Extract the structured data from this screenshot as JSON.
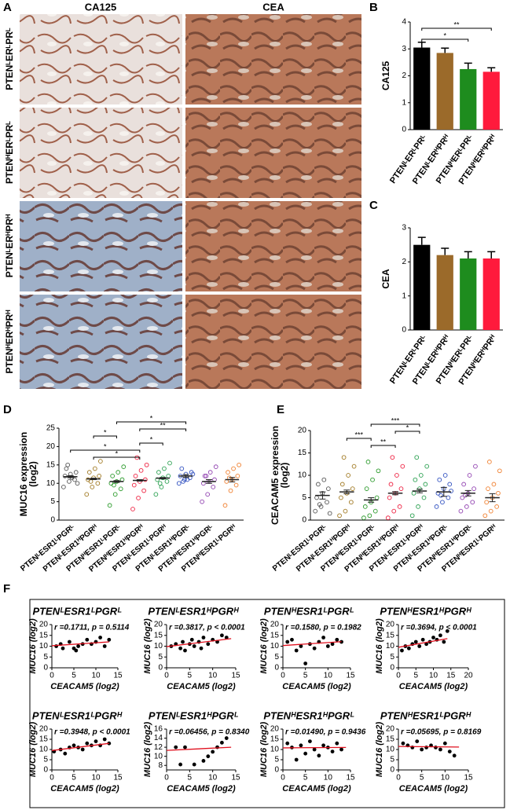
{
  "panel_labels": [
    "A",
    "B",
    "C",
    "D",
    "E",
    "F"
  ],
  "images": {
    "columns": [
      "CA125",
      "CEA"
    ],
    "rows": [
      "PTENᴸERᴸPRᴸ",
      "PTENᴴERᴸPRᴸ",
      "PTENᴸERᴴPRᴴ",
      "PTENᴴERᴴPRᴴ"
    ]
  },
  "chart_data": [
    {
      "type": "bar",
      "ylabel": "CA125",
      "categories": [
        "PTENᴸERᴸPRᴸ",
        "PTENᴸERᴴPRᴴ",
        "PTENᴴERᴸPRᴸ",
        "PTENᴴERᴴPRᴴ"
      ],
      "values": [
        3.05,
        2.85,
        2.25,
        2.15
      ],
      "errors": [
        0.2,
        0.18,
        0.22,
        0.15
      ],
      "colors": [
        "#000000",
        "#9b6a2a",
        "#1e8c1e",
        "#ff1a3c"
      ],
      "ylim": [
        0,
        4
      ],
      "yticks": [
        0,
        1,
        2,
        3,
        4
      ],
      "significance": [
        {
          "label": "**",
          "from": "PTENᴸERᴸPRᴸ",
          "to": "PTENᴴERᴴPRᴴ"
        },
        {
          "label": "*",
          "from": "PTENᴸERᴸPRᴸ",
          "to": "PTENᴴERᴸPRᴸ"
        }
      ]
    },
    {
      "type": "bar",
      "ylabel": "CEA",
      "categories": [
        "PTENᴸERᴸPRᴸ",
        "PTENᴸERᴴPRᴴ",
        "PTENᴴERᴸPRᴸ",
        "PTENᴴERᴴPRᴴ"
      ],
      "values": [
        2.5,
        2.2,
        2.1,
        2.1
      ],
      "errors": [
        0.22,
        0.2,
        0.2,
        0.2
      ],
      "colors": [
        "#000000",
        "#9b6a2a",
        "#1e8c1e",
        "#ff1a3c"
      ],
      "ylim": [
        0,
        3
      ],
      "yticks": [
        0,
        1,
        2,
        3
      ],
      "significance": []
    },
    {
      "type": "dot",
      "ylabel": [
        "MUC16 expression",
        "(log2)"
      ],
      "ylim": [
        0,
        25
      ],
      "yticks": [
        0,
        5,
        10,
        15,
        20,
        25
      ],
      "series": [
        {
          "name": "PTENᴸESR1ᴸPGRᴸ",
          "color": "#555555",
          "values": [
            9,
            10.5,
            11,
            12,
            12.5,
            13,
            14,
            11.5,
            10,
            15
          ],
          "mean": 11.8,
          "sem": 0.3
        },
        {
          "name": "PTENᴸESR1ᴴPGRᴴ",
          "color": "#a07820",
          "values": [
            7,
            9,
            10,
            11,
            11.5,
            12,
            13,
            14,
            16,
            10.5
          ],
          "mean": 11.2,
          "sem": 0.2
        },
        {
          "name": "PTENᴴESR1ᴸPGRᴸ",
          "color": "#2a9a2a",
          "values": [
            4,
            7,
            8.5,
            10,
            10.5,
            11,
            12,
            13,
            14.5,
            9.5
          ],
          "mean": 10.5,
          "sem": 0.25
        },
        {
          "name": "PTENᴴESR1ᴴPGRᴴ",
          "color": "#ee2040",
          "values": [
            3,
            6,
            8,
            9.5,
            10.5,
            11,
            12,
            13.5,
            15,
            17
          ],
          "mean": 10.8,
          "sem": 0.2
        },
        {
          "name": "PTENᴸESR1ᴸPGRᴴ",
          "color": "#2aa050",
          "values": [
            7,
            9,
            10.5,
            11,
            11.5,
            12,
            13,
            14,
            15.5,
            10
          ],
          "mean": 11.4,
          "sem": 0.2
        },
        {
          "name": "PTENᴸESR1ᴴPGRᴸ",
          "color": "#3050c0",
          "values": [
            10,
            11,
            11.5,
            12,
            12.5,
            13,
            14,
            11,
            12.5,
            10.5
          ],
          "mean": 12.0,
          "sem": 0.4
        },
        {
          "name": "PTENᴴESR1ᴴPGRᴸ",
          "color": "#9040b0",
          "values": [
            5,
            7,
            9,
            10,
            10.5,
            11,
            12,
            13,
            14.5,
            12
          ],
          "mean": 10.5,
          "sem": 0.5
        },
        {
          "name": "PTENᴴESR1ᴸPGRᴴ",
          "color": "#f08030",
          "values": [
            4,
            8,
            9.5,
            10.5,
            11,
            12,
            13,
            14,
            15,
            11.5
          ],
          "mean": 11.0,
          "sem": 0.6
        }
      ],
      "significance": [
        {
          "label": "*",
          "from": "PTENᴴESR1ᴸPGRᴸ",
          "to": "PTENᴸESR1ᴴPGRᴸ"
        },
        {
          "label": "**",
          "from": "PTENᴴESR1ᴴPGRᴴ",
          "to": "PTENᴸESR1ᴴPGRᴸ"
        },
        {
          "label": "*",
          "from": "PTENᴸESR1ᴴPGRᴴ",
          "to": "PTENᴴESR1ᴸPGRᴸ"
        },
        {
          "label": "*",
          "from": "PTENᴴESR1ᴴPGRᴴ",
          "to": "PTENᴸESR1ᴸPGRᴴ"
        },
        {
          "label": "*",
          "from": "PTENᴸESR1ᴸPGRᴸ",
          "to": "PTENᴴESR1ᴴPGRᴴ"
        },
        {
          "label": "*",
          "from": "PTENᴸESR1ᴴPGRᴴ",
          "to": "PTENᴴESR1ᴴPGRᴴ"
        }
      ]
    },
    {
      "type": "dot",
      "ylabel": [
        "CEACAM5 expression",
        "(log2)"
      ],
      "ylim": [
        0,
        20
      ],
      "yticks": [
        0,
        5,
        10,
        15,
        20
      ],
      "series": [
        {
          "name": "PTENᴸESR1ᴸPGRᴸ",
          "color": "#555555",
          "values": [
            2,
            3,
            4,
            5,
            6,
            7,
            8,
            9,
            1.5,
            3.5
          ],
          "mean": 5.5,
          "sem": 0.8
        },
        {
          "name": "PTENᴸESR1ᴴPGRᴴ",
          "color": "#a07820",
          "values": [
            1,
            2,
            4,
            5,
            6,
            7,
            8,
            10,
            12,
            14
          ],
          "mean": 6.3,
          "sem": 0.4
        },
        {
          "name": "PTENᴴESR1ᴸPGRᴸ",
          "color": "#2a9a2a",
          "values": [
            0.5,
            1,
            2,
            3,
            4,
            5,
            7,
            9,
            11,
            13
          ],
          "mean": 4.5,
          "sem": 0.5
        },
        {
          "name": "PTENᴴESR1ᴴPGRᴴ",
          "color": "#ee2040",
          "values": [
            0.5,
            2,
            3,
            5,
            6,
            7,
            8,
            10,
            12,
            14
          ],
          "mean": 6.0,
          "sem": 0.35
        },
        {
          "name": "PTENᴸESR1ᴸPGRᴴ",
          "color": "#2aa050",
          "values": [
            1,
            3,
            5,
            6,
            7,
            8,
            9,
            10,
            12,
            14
          ],
          "mean": 6.5,
          "sem": 0.4
        },
        {
          "name": "PTENᴸESR1ᴴPGRᴸ",
          "color": "#3050c0",
          "values": [
            3,
            4,
            5,
            6,
            7,
            8,
            9,
            10,
            6.5,
            5.5
          ],
          "mean": 6.3,
          "sem": 1.0
        },
        {
          "name": "PTENᴴESR1ᴴPGRᴸ",
          "color": "#9040b0",
          "values": [
            2,
            3,
            4,
            5,
            6,
            7,
            8,
            10,
            12,
            5.5
          ],
          "mean": 6.0,
          "sem": 0.6
        },
        {
          "name": "PTENᴴESR1ᴸPGRᴴ",
          "color": "#f08030",
          "values": [
            1,
            2,
            3,
            4,
            5,
            6,
            7,
            8,
            11,
            13
          ],
          "mean": 5.0,
          "sem": 0.9
        }
      ],
      "significance": [
        {
          "label": "***",
          "from": "PTENᴴESR1ᴸPGRᴸ",
          "to": "PTENᴸESR1ᴸPGRᴴ"
        },
        {
          "label": "*",
          "from": "PTENᴴESR1ᴴPGRᴴ",
          "to": "PTENᴸESR1ᴸPGRᴴ"
        },
        {
          "label": "***",
          "from": "PTENᴸESR1ᴴPGRᴴ",
          "to": "PTENᴴESR1ᴸPGRᴸ"
        },
        {
          "label": "**",
          "from": "PTENᴴESR1ᴸPGRᴸ",
          "to": "PTENᴴESR1ᴴPGRᴴ"
        }
      ]
    },
    {
      "type": "scatter",
      "title": "PTENᴸESR1ᴸPGRᴸ",
      "annotation": "r =0.1711, p = 0.5114",
      "xlabel": "CEACAM5 (log2)",
      "ylabel": "MUC16 (log2)",
      "xlim": [
        0,
        15
      ],
      "xticks": [
        0,
        5,
        10,
        15
      ],
      "ylim": [
        0,
        20
      ],
      "yticks": [
        0,
        5,
        10,
        15,
        20
      ],
      "x": [
        1,
        2,
        2.5,
        4,
        5,
        5.5,
        6,
        7,
        8,
        9,
        10,
        11,
        12,
        13
      ],
      "y": [
        10,
        11,
        9,
        12,
        9,
        8,
        10,
        11,
        13,
        11,
        12,
        14,
        10,
        13
      ],
      "trend": {
        "x": [
          0,
          13
        ],
        "y": [
          10.2,
          12.0
        ]
      }
    },
    {
      "type": "scatter",
      "title": "PTENᴸESR1ᴴPGRᴴ",
      "annotation": "r =0.3817, p < 0.0001",
      "xlabel": "CEACAM5 (log2)",
      "ylabel": "MUC16 (log2)",
      "xlim": [
        0,
        15
      ],
      "xticks": [
        0,
        5,
        10,
        15
      ],
      "ylim": [
        0,
        20
      ],
      "yticks": [
        0,
        5,
        10,
        15,
        20
      ],
      "x": [
        1,
        2,
        3,
        3.5,
        4,
        5,
        5.5,
        6,
        7,
        7.5,
        8,
        9,
        10,
        11,
        12,
        13
      ],
      "y": [
        10,
        11,
        9,
        12,
        8,
        11,
        13,
        10,
        12,
        9,
        14,
        11,
        13,
        12,
        15,
        14
      ],
      "trend": {
        "x": [
          0,
          14
        ],
        "y": [
          9.8,
          13.5
        ]
      }
    },
    {
      "type": "scatter",
      "title": "PTENᴴESR1ᴸPGRᴸ",
      "annotation": "r =0.1580, p = 0.1982",
      "xlabel": "CEACAM5 (log2)",
      "ylabel": "MUC16 (log2)",
      "xlim": [
        0,
        15
      ],
      "xticks": [
        0,
        5,
        10,
        15
      ],
      "ylim": [
        0,
        20
      ],
      "yticks": [
        0,
        5,
        10,
        15,
        20
      ],
      "x": [
        1,
        2,
        3,
        4,
        5,
        6,
        7,
        8,
        9,
        10,
        11,
        12,
        13
      ],
      "y": [
        12,
        13,
        8,
        10,
        2,
        11,
        9,
        12,
        14,
        10,
        11,
        13,
        12
      ],
      "trend": {
        "x": [
          0,
          13
        ],
        "y": [
          10.3,
          12.1
        ]
      }
    },
    {
      "type": "scatter",
      "title": "PTENᴴESR1ᴴPGRᴴ",
      "annotation": "r =0.3694, p < 0.0001",
      "xlabel": "CEACAM5 (log2)",
      "ylabel": "MUC16 (log2)",
      "xlim": [
        0,
        20
      ],
      "xticks": [
        0,
        5,
        10,
        15,
        20
      ],
      "ylim": [
        0,
        20
      ],
      "yticks": [
        0,
        5,
        10,
        15,
        20
      ],
      "x": [
        1,
        2,
        3,
        4,
        5,
        6,
        7,
        8,
        9,
        10,
        11,
        12,
        13,
        14
      ],
      "y": [
        8,
        10,
        9,
        11,
        12,
        10,
        13,
        11,
        12,
        14,
        13,
        15,
        12,
        17
      ],
      "trend": {
        "x": [
          0,
          14
        ],
        "y": [
          9.5,
          13.5
        ]
      }
    },
    {
      "type": "scatter",
      "title": "PTENᴸESR1ᴸPGRᴴ",
      "annotation": "r =0.3948, p < 0.0001",
      "xlabel": "CEACAM5 (log2)",
      "ylabel": "MUC16 (log2)",
      "xlim": [
        0,
        15
      ],
      "xticks": [
        0,
        5,
        10,
        15
      ],
      "ylim": [
        0,
        20
      ],
      "yticks": [
        0,
        5,
        10,
        15,
        20
      ],
      "x": [
        0.5,
        2,
        3,
        4,
        5,
        6,
        7,
        8,
        9,
        10,
        11,
        12,
        13
      ],
      "y": [
        9,
        10,
        8,
        11,
        12,
        11,
        10,
        13,
        12,
        14,
        12,
        15,
        13
      ],
      "trend": {
        "x": [
          0,
          13
        ],
        "y": [
          9.5,
          13.0
        ]
      }
    },
    {
      "type": "scatter",
      "title": "PTENᴸESR1ᴴPGRᴸ",
      "annotation": "r =0.06456, p = 0.8340",
      "xlabel": "CEACAM5 (log2)",
      "ylabel": "MUC16 (log2)",
      "xlim": [
        0,
        15
      ],
      "xticks": [
        0,
        5,
        10,
        15
      ],
      "ylim": [
        7,
        16
      ],
      "yticks": [
        8,
        10,
        12,
        14,
        16
      ],
      "x": [
        2,
        3,
        4,
        6,
        8,
        9,
        10,
        11,
        12,
        13
      ],
      "y": [
        12,
        8.2,
        12,
        8.2,
        9,
        10,
        11,
        12,
        13,
        14
      ],
      "trend": {
        "x": [
          0,
          14
        ],
        "y": [
          11.3,
          12.0
        ]
      }
    },
    {
      "type": "scatter",
      "title": "PTENᴴESR1ᴴPGRᴸ",
      "annotation": "r =0.01490, p = 0.9436",
      "xlabel": "CEACAM5 (log2)",
      "ylabel": "MUC16 (log2)",
      "xlim": [
        0,
        15
      ],
      "xticks": [
        0,
        5,
        10,
        15
      ],
      "ylim": [
        0,
        20
      ],
      "yticks": [
        0,
        5,
        10,
        15,
        20
      ],
      "x": [
        1,
        2,
        3,
        4,
        5,
        6,
        7,
        8,
        9,
        10,
        11,
        12,
        13
      ],
      "y": [
        13,
        11,
        5,
        12,
        8,
        14,
        10,
        7,
        12,
        11,
        9,
        13,
        10
      ],
      "trend": {
        "x": [
          0,
          14
        ],
        "y": [
          10.8,
          11.0
        ]
      }
    },
    {
      "type": "scatter",
      "title": "PTENᴴESR1ᴸPGRᴴ",
      "annotation": "r =0.05695, p = 0.8169",
      "xlabel": "CEACAM5 (log2)",
      "ylabel": "MUC16 (log2)",
      "xlim": [
        0,
        15
      ],
      "xticks": [
        0,
        5,
        10,
        15
      ],
      "ylim": [
        0,
        20
      ],
      "yticks": [
        0,
        5,
        10,
        15,
        20
      ],
      "x": [
        1,
        2,
        3,
        4,
        5,
        6,
        7,
        8,
        9,
        10,
        11,
        12
      ],
      "y": [
        13,
        12,
        11,
        14,
        10,
        11,
        12,
        11,
        10,
        13,
        9,
        7
      ],
      "trend": {
        "x": [
          0,
          13
        ],
        "y": [
          11.5,
          11.2
        ]
      }
    }
  ]
}
